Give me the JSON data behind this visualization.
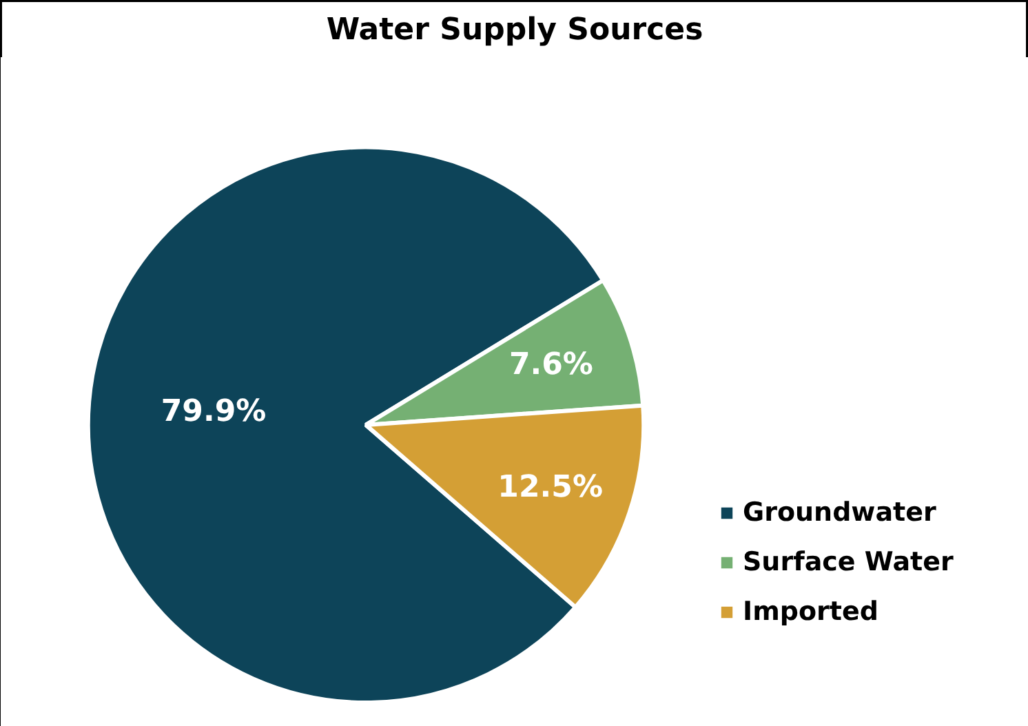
{
  "chart_data": {
    "type": "pie",
    "title": "Water Supply Sources",
    "categories": [
      "Groundwater",
      "Surface Water",
      "Imported"
    ],
    "values": [
      79.9,
      7.6,
      12.5
    ],
    "colors": [
      "#0d4459",
      "#75b073",
      "#d49f35"
    ],
    "value_labels": [
      "79.9%",
      "7.6%",
      "12.5%"
    ],
    "legend": "right"
  }
}
